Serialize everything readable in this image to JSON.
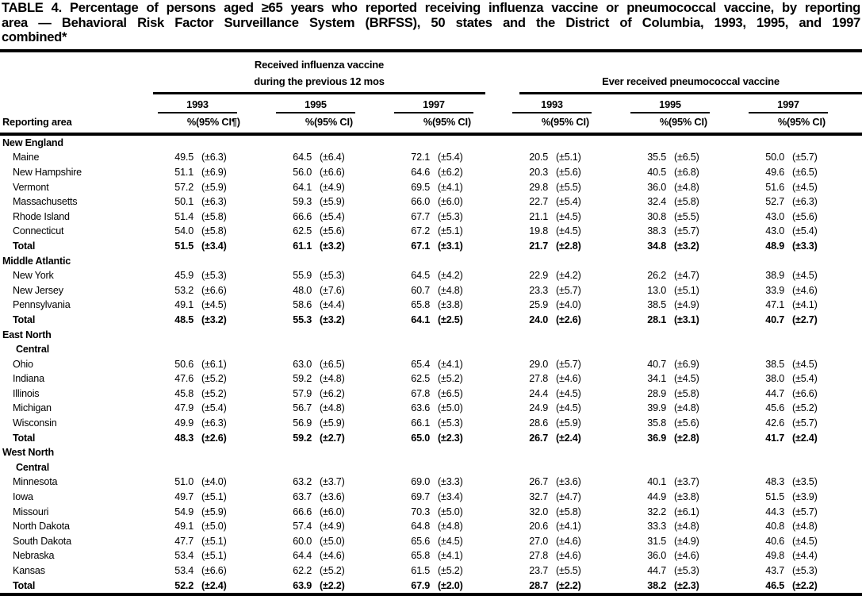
{
  "title": {
    "lines": [
      "TABLE 4. Percentage of persons aged ≥65 years who reported receiving influenza vaccine or pneumococcal vaccine, by reporting",
      "area — Behavioral Risk Factor Surveillance System (BRFSS), 50 states and the District of Columbia, 1993, 1995, and 1997",
      "combined*"
    ]
  },
  "table": {
    "reporting_area_label": "Reporting area",
    "flu_header_line1": "Received influenza vaccine",
    "flu_header_line2": "during the previous 12 mos",
    "pneumo_header": "Ever received pneumococcal vaccine",
    "years": [
      "1993",
      "1995",
      "1997"
    ],
    "pct_label": "%",
    "ci_headers": [
      "(95% CI¶)",
      "(95% CI)",
      "(95% CI)",
      "(95% CI)",
      "(95% CI)",
      "(95% CI)"
    ],
    "groups": [
      {
        "name_lines": [
          "New England"
        ],
        "rows": [
          {
            "area": "Maine",
            "total": false,
            "values": [
              "49.5",
              "(±6.3)",
              "64.5",
              "(±6.4)",
              "72.1",
              "(±5.4)",
              "20.5",
              "(±5.1)",
              "35.5",
              "(±6.5)",
              "50.0",
              "(±5.7)"
            ]
          },
          {
            "area": "New Hampshire",
            "total": false,
            "values": [
              "51.1",
              "(±6.9)",
              "56.0",
              "(±6.6)",
              "64.6",
              "(±6.2)",
              "20.3",
              "(±5.6)",
              "40.5",
              "(±6.8)",
              "49.6",
              "(±6.5)"
            ]
          },
          {
            "area": "Vermont",
            "total": false,
            "values": [
              "57.2",
              "(±5.9)",
              "64.1",
              "(±4.9)",
              "69.5",
              "(±4.1)",
              "29.8",
              "(±5.5)",
              "36.0",
              "(±4.8)",
              "51.6",
              "(±4.5)"
            ]
          },
          {
            "area": "Massachusetts",
            "total": false,
            "values": [
              "50.1",
              "(±6.3)",
              "59.3",
              "(±5.9)",
              "66.0",
              "(±6.0)",
              "22.7",
              "(±5.4)",
              "32.4",
              "(±5.8)",
              "52.7",
              "(±6.3)"
            ]
          },
          {
            "area": "Rhode Island",
            "total": false,
            "values": [
              "51.4",
              "(±5.8)",
              "66.6",
              "(±5.4)",
              "67.7",
              "(±5.3)",
              "21.1",
              "(±4.5)",
              "30.8",
              "(±5.5)",
              "43.0",
              "(±5.6)"
            ]
          },
          {
            "area": "Connecticut",
            "total": false,
            "values": [
              "54.0",
              "(±5.8)",
              "62.5",
              "(±5.6)",
              "67.2",
              "(±5.1)",
              "19.8",
              "(±4.5)",
              "38.3",
              "(±5.7)",
              "43.0",
              "(±5.4)"
            ]
          },
          {
            "area": "Total",
            "total": true,
            "values": [
              "51.5",
              "(±3.4)",
              "61.1",
              "(±3.2)",
              "67.1",
              "(±3.1)",
              "21.7",
              "(±2.8)",
              "34.8",
              "(±3.2)",
              "48.9",
              "(±3.3)"
            ]
          }
        ]
      },
      {
        "name_lines": [
          "Middle Atlantic"
        ],
        "rows": [
          {
            "area": "New York",
            "total": false,
            "values": [
              "45.9",
              "(±5.3)",
              "55.9",
              "(±5.3)",
              "64.5",
              "(±4.2)",
              "22.9",
              "(±4.2)",
              "26.2",
              "(±4.7)",
              "38.9",
              "(±4.5)"
            ]
          },
          {
            "area": "New Jersey",
            "total": false,
            "values": [
              "53.2",
              "(±6.6)",
              "48.0",
              "(±7.6)",
              "60.7",
              "(±4.8)",
              "23.3",
              "(±5.7)",
              "13.0",
              "(±5.1)",
              "33.9",
              "(±4.6)"
            ]
          },
          {
            "area": "Pennsylvania",
            "total": false,
            "values": [
              "49.1",
              "(±4.5)",
              "58.6",
              "(±4.4)",
              "65.8",
              "(±3.8)",
              "25.9",
              "(±4.0)",
              "38.5",
              "(±4.9)",
              "47.1",
              "(±4.1)"
            ]
          },
          {
            "area": "Total",
            "total": true,
            "values": [
              "48.5",
              "(±3.2)",
              "55.3",
              "(±3.2)",
              "64.1",
              "(±2.5)",
              "24.0",
              "(±2.6)",
              "28.1",
              "(±3.1)",
              "40.7",
              "(±2.7)"
            ]
          }
        ]
      },
      {
        "name_lines": [
          "East North",
          "Central"
        ],
        "rows": [
          {
            "area": "Ohio",
            "total": false,
            "values": [
              "50.6",
              "(±6.1)",
              "63.0",
              "(±6.5)",
              "65.4",
              "(±4.1)",
              "29.0",
              "(±5.7)",
              "40.7",
              "(±6.9)",
              "38.5",
              "(±4.5)"
            ]
          },
          {
            "area": "Indiana",
            "total": false,
            "values": [
              "47.6",
              "(±5.2)",
              "59.2",
              "(±4.8)",
              "62.5",
              "(±5.2)",
              "27.8",
              "(±4.6)",
              "34.1",
              "(±4.5)",
              "38.0",
              "(±5.4)"
            ]
          },
          {
            "area": "Illinois",
            "total": false,
            "values": [
              "45.8",
              "(±5.2)",
              "57.9",
              "(±6.2)",
              "67.8",
              "(±6.5)",
              "24.4",
              "(±4.5)",
              "28.9",
              "(±5.8)",
              "44.7",
              "(±6.6)"
            ]
          },
          {
            "area": "Michigan",
            "total": false,
            "values": [
              "47.9",
              "(±5.4)",
              "56.7",
              "(±4.8)",
              "63.6",
              "(±5.0)",
              "24.9",
              "(±4.5)",
              "39.9",
              "(±4.8)",
              "45.6",
              "(±5.2)"
            ]
          },
          {
            "area": "Wisconsin",
            "total": false,
            "values": [
              "49.9",
              "(±6.3)",
              "56.9",
              "(±5.9)",
              "66.1",
              "(±5.3)",
              "28.6",
              "(±5.9)",
              "35.8",
              "(±5.6)",
              "42.6",
              "(±5.7)"
            ]
          },
          {
            "area": "Total",
            "total": true,
            "values": [
              "48.3",
              "(±2.6)",
              "59.2",
              "(±2.7)",
              "65.0",
              "(±2.3)",
              "26.7",
              "(±2.4)",
              "36.9",
              "(±2.8)",
              "41.7",
              "(±2.4)"
            ]
          }
        ]
      },
      {
        "name_lines": [
          "West North",
          "Central"
        ],
        "rows": [
          {
            "area": "Minnesota",
            "total": false,
            "values": [
              "51.0",
              "(±4.0)",
              "63.2",
              "(±3.7)",
              "69.0",
              "(±3.3)",
              "26.7",
              "(±3.6)",
              "40.1",
              "(±3.7)",
              "48.3",
              "(±3.5)"
            ]
          },
          {
            "area": "Iowa",
            "total": false,
            "values": [
              "49.7",
              "(±5.1)",
              "63.7",
              "(±3.6)",
              "69.7",
              "(±3.4)",
              "32.7",
              "(±4.7)",
              "44.9",
              "(±3.8)",
              "51.5",
              "(±3.9)"
            ]
          },
          {
            "area": "Missouri",
            "total": false,
            "values": [
              "54.9",
              "(±5.9)",
              "66.6",
              "(±6.0)",
              "70.3",
              "(±5.0)",
              "32.0",
              "(±5.8)",
              "32.2",
              "(±6.1)",
              "44.3",
              "(±5.7)"
            ]
          },
          {
            "area": "North Dakota",
            "total": false,
            "values": [
              "49.1",
              "(±5.0)",
              "57.4",
              "(±4.9)",
              "64.8",
              "(±4.8)",
              "20.6",
              "(±4.1)",
              "33.3",
              "(±4.8)",
              "40.8",
              "(±4.8)"
            ]
          },
          {
            "area": "South Dakota",
            "total": false,
            "values": [
              "47.7",
              "(±5.1)",
              "60.0",
              "(±5.0)",
              "65.6",
              "(±4.5)",
              "27.0",
              "(±4.6)",
              "31.5",
              "(±4.9)",
              "40.6",
              "(±4.5)"
            ]
          },
          {
            "area": "Nebraska",
            "total": false,
            "values": [
              "53.4",
              "(±5.1)",
              "64.4",
              "(±4.6)",
              "65.8",
              "(±4.1)",
              "27.8",
              "(±4.6)",
              "36.0",
              "(±4.6)",
              "49.8",
              "(±4.4)"
            ]
          },
          {
            "area": "Kansas",
            "total": false,
            "values": [
              "53.4",
              "(±6.6)",
              "62.2",
              "(±5.2)",
              "61.5",
              "(±5.2)",
              "23.7",
              "(±5.5)",
              "44.7",
              "(±5.3)",
              "43.7",
              "(±5.3)"
            ]
          },
          {
            "area": "Total",
            "total": true,
            "values": [
              "52.2",
              "(±2.4)",
              "63.9",
              "(±2.2)",
              "67.9",
              "(±2.0)",
              "28.7",
              "(±2.2)",
              "38.2",
              "(±2.3)",
              "46.5",
              "(±2.2)"
            ]
          }
        ]
      }
    ]
  }
}
